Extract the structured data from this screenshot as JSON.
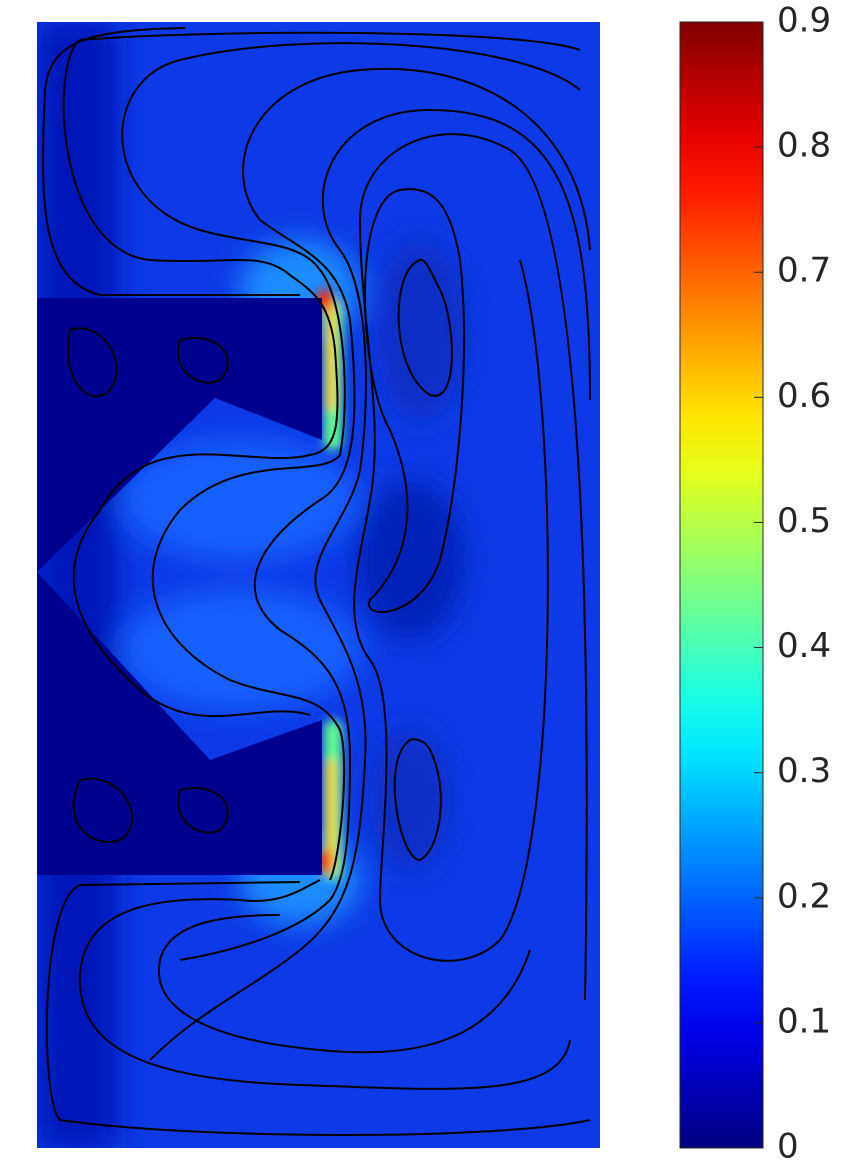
{
  "chart_data": {
    "type": "heatmap",
    "colormap": "jet",
    "clim": [
      0,
      0.9
    ],
    "cticks": [
      0,
      0.1,
      0.2,
      0.3,
      0.4,
      0.5,
      0.6,
      0.7,
      0.8,
      0.9
    ]
  }
}
